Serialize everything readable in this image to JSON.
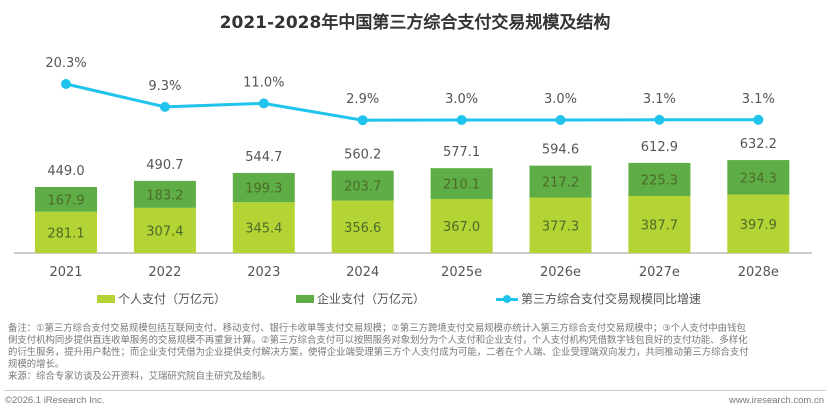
{
  "title": "2021-2028年中国第三方综合支付交易规模及结构",
  "colors": {
    "personal": "#b4d334",
    "enterprise": "#5fad46",
    "growth_line": "#1fc3ec",
    "axis": "#999999",
    "label_text": "#555555",
    "inner_label_text": "#4d6b2a"
  },
  "chart_data": {
    "type": "bar",
    "stacked": true,
    "title": "2021-2028年中国第三方综合支付交易规模及结构",
    "xlabel": "",
    "ylabel": "",
    "categories": [
      "2021",
      "2022",
      "2023",
      "2024",
      "2025e",
      "2026e",
      "2027e",
      "2028e"
    ],
    "series": [
      {
        "name": "个人支付（万亿元）",
        "type": "bar",
        "values": [
          281.1,
          307.4,
          345.4,
          356.6,
          367.0,
          377.3,
          387.7,
          397.9
        ]
      },
      {
        "name": "企业支付（万亿元）",
        "type": "bar",
        "values": [
          167.9,
          183.2,
          199.3,
          203.7,
          210.1,
          217.2,
          225.3,
          234.3
        ]
      },
      {
        "name": "第三方综合支付交易规模同比增速",
        "type": "line",
        "unit": "%",
        "values": [
          20.3,
          9.3,
          11.0,
          2.9,
          3.0,
          3.0,
          3.1,
          3.1
        ]
      }
    ],
    "totals": [
      449.0,
      490.7,
      544.7,
      560.2,
      577.1,
      594.6,
      612.9,
      632.2
    ],
    "total_labels": [
      "449.0",
      "490.7",
      "544.7",
      "560.2",
      "577.1",
      "594.6",
      "612.9",
      "632.2"
    ],
    "personal_labels": [
      "281.1",
      "307.4",
      "345.4",
      "356.6",
      "367.0",
      "377.3",
      "387.7",
      "397.9"
    ],
    "enterprise_labels": [
      "167.9",
      "183.2",
      "199.3",
      "203.7",
      "210.1",
      "217.2",
      "225.3",
      "234.3"
    ],
    "growth_labels": [
      "20.3%",
      "9.3%",
      "11.0%",
      "2.9%",
      "3.0%",
      "3.0%",
      "3.1%",
      "3.1%"
    ],
    "ylim": [
      0,
      700
    ],
    "grid": false,
    "legend": "bottom"
  },
  "legend": {
    "personal": "个人支付（万亿元）",
    "enterprise": "企业支付（万亿元）",
    "growth": "第三方综合支付交易规模同比增速"
  },
  "notes": {
    "line1": "备注：①第三方综合支付交易规模包括互联网支付、移动支付、银行卡收单等支付交易规模；②第三方跨境支付交易规模亦统计入第三方综合支付交易规模中；③个人支付中由钱包",
    "line2": "侧支付机构同步提供直连收单服务的交易规模不再重复计算。②第三方综合支付可以按照服务对象划分为个人支付和企业支付，个人支付机构凭借数字钱包良好的支付功能、多样化",
    "line3": "的衍生服务，提升用户黏性；而企业支付凭借为企业提供支付解决方案，使得企业端受理第三方个人支付成为可能，二者在个人端、企业受理端双向发力，共同推动第三方综合支付",
    "line4": "规模的增长。",
    "source": "来源：综合专家访谈及公开资料，艾瑞研究院自主研究及绘制。"
  },
  "footer": {
    "copyright": "©2026.1 iResearch Inc.",
    "website": "www.iresearch.com.cn"
  }
}
